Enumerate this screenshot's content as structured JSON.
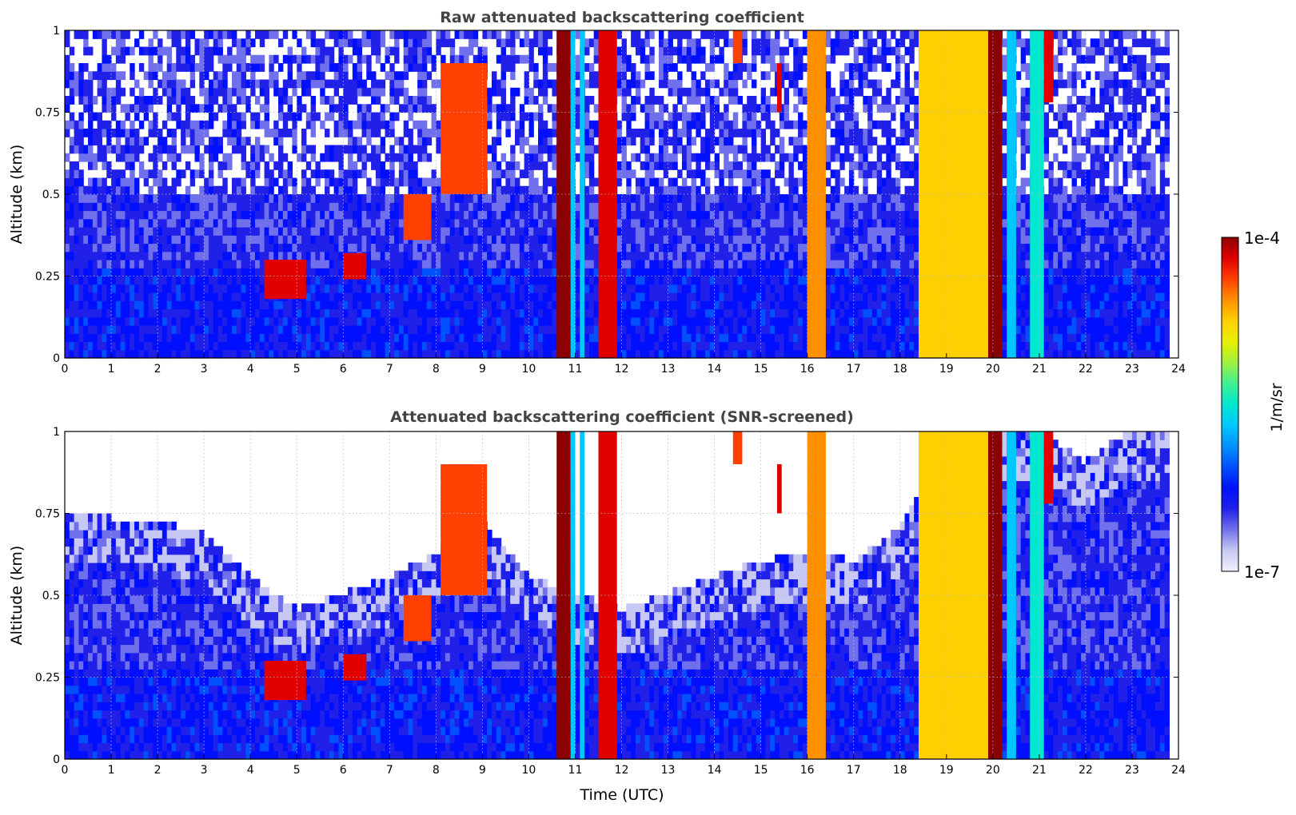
{
  "chart_data": [
    {
      "type": "heatmap",
      "title": "Raw attenuated backscattering coefficient",
      "xlabel": "",
      "ylabel": "Altitude (km)",
      "xlim": [
        0,
        24
      ],
      "ylim": [
        0,
        1
      ],
      "x_ticks": [
        "0",
        "1",
        "2",
        "3",
        "4",
        "5",
        "6",
        "7",
        "8",
        "9",
        "10",
        "11",
        "12",
        "13",
        "14",
        "15",
        "16",
        "17",
        "18",
        "19",
        "20",
        "21",
        "22",
        "23",
        "24"
      ],
      "y_ticks": [
        "0",
        "0.25",
        "0.5",
        "0.75",
        "1"
      ],
      "data_end_hour": 23.8,
      "background_level": 0.2,
      "noise_floor_altitude_km": 0.5,
      "features": [
        {
          "x_start": 10.6,
          "x_end": 10.9,
          "y_bottom": 0,
          "y_top": 1,
          "level": 0.95
        },
        {
          "x_start": 10.9,
          "x_end": 11.0,
          "y_bottom": 0,
          "y_top": 1,
          "level": 0.45
        },
        {
          "x_start": 11.1,
          "x_end": 11.2,
          "y_bottom": 0,
          "y_top": 1,
          "level": 0.45
        },
        {
          "x_start": 11.5,
          "x_end": 11.9,
          "y_bottom": 0,
          "y_top": 1,
          "level": 0.9
        },
        {
          "x_start": 16.0,
          "x_end": 16.4,
          "y_bottom": 0,
          "y_top": 1,
          "level": 0.8
        },
        {
          "x_start": 18.4,
          "x_end": 19.9,
          "y_bottom": 0,
          "y_top": 1,
          "level": 0.72
        },
        {
          "x_start": 19.9,
          "x_end": 20.2,
          "y_bottom": 0,
          "y_top": 1,
          "level": 0.95
        },
        {
          "x_start": 20.3,
          "x_end": 20.5,
          "y_bottom": 0,
          "y_top": 1,
          "level": 0.45
        },
        {
          "x_start": 20.8,
          "x_end": 21.1,
          "y_bottom": 0,
          "y_top": 1,
          "level": 0.5
        },
        {
          "x_start": 4.3,
          "x_end": 5.2,
          "y_bottom": 0.18,
          "y_top": 0.3,
          "level": 0.9
        },
        {
          "x_start": 6.0,
          "x_end": 6.5,
          "y_bottom": 0.24,
          "y_top": 0.32,
          "level": 0.9
        },
        {
          "x_start": 7.3,
          "x_end": 7.9,
          "y_bottom": 0.36,
          "y_top": 0.5,
          "level": 0.88
        },
        {
          "x_start": 8.1,
          "x_end": 9.1,
          "y_bottom": 0.5,
          "y_top": 0.9,
          "level": 0.85
        },
        {
          "x_start": 14.4,
          "x_end": 14.6,
          "y_bottom": 0.9,
          "y_top": 1,
          "level": 0.85
        },
        {
          "x_start": 15.35,
          "x_end": 15.45,
          "y_bottom": 0.75,
          "y_top": 0.9,
          "level": 0.9
        },
        {
          "x_start": 21.1,
          "x_end": 21.3,
          "y_bottom": 0.78,
          "y_top": 1,
          "level": 0.9
        }
      ]
    },
    {
      "type": "heatmap",
      "title": "Attenuated backscattering coefficient (SNR-screened)",
      "xlabel": "Time (UTC)",
      "ylabel": "Altitude (km)",
      "xlim": [
        0,
        24
      ],
      "ylim": [
        0,
        1
      ],
      "x_ticks": [
        "0",
        "1",
        "2",
        "3",
        "4",
        "5",
        "6",
        "7",
        "8",
        "9",
        "10",
        "11",
        "12",
        "13",
        "14",
        "15",
        "16",
        "17",
        "18",
        "19",
        "20",
        "21",
        "22",
        "23",
        "24"
      ],
      "y_ticks": [
        "0",
        "0.25",
        "0.5",
        "0.75",
        "1"
      ],
      "data_end_hour": 23.8,
      "background_level": 0.2,
      "valid_top_profile": [
        {
          "x": 0,
          "y": 0.75
        },
        {
          "x": 1,
          "y": 0.73
        },
        {
          "x": 2,
          "y": 0.72
        },
        {
          "x": 3,
          "y": 0.68
        },
        {
          "x": 4,
          "y": 0.55
        },
        {
          "x": 5,
          "y": 0.45
        },
        {
          "x": 6,
          "y": 0.5
        },
        {
          "x": 7,
          "y": 0.55
        },
        {
          "x": 8,
          "y": 0.62
        },
        {
          "x": 9,
          "y": 0.72
        },
        {
          "x": 10,
          "y": 0.55
        },
        {
          "x": 12,
          "y": 0.45
        },
        {
          "x": 13,
          "y": 0.5
        },
        {
          "x": 14,
          "y": 0.55
        },
        {
          "x": 15,
          "y": 0.6
        },
        {
          "x": 16,
          "y": 0.62
        },
        {
          "x": 17,
          "y": 0.6
        },
        {
          "x": 18,
          "y": 0.7
        },
        {
          "x": 19,
          "y": 1.0
        },
        {
          "x": 21,
          "y": 1.0
        },
        {
          "x": 22,
          "y": 0.9
        },
        {
          "x": 23,
          "y": 1.0
        },
        {
          "x": 23.8,
          "y": 1.0
        }
      ],
      "features": [
        {
          "x_start": 10.6,
          "x_end": 10.9,
          "y_bottom": 0,
          "y_top": 1,
          "level": 0.95
        },
        {
          "x_start": 10.9,
          "x_end": 11.0,
          "y_bottom": 0,
          "y_top": 1,
          "level": 0.45
        },
        {
          "x_start": 11.1,
          "x_end": 11.2,
          "y_bottom": 0,
          "y_top": 1,
          "level": 0.45
        },
        {
          "x_start": 11.5,
          "x_end": 11.9,
          "y_bottom": 0,
          "y_top": 1,
          "level": 0.9
        },
        {
          "x_start": 16.0,
          "x_end": 16.4,
          "y_bottom": 0,
          "y_top": 1,
          "level": 0.8
        },
        {
          "x_start": 18.4,
          "x_end": 19.9,
          "y_bottom": 0,
          "y_top": 1,
          "level": 0.72
        },
        {
          "x_start": 19.9,
          "x_end": 20.2,
          "y_bottom": 0,
          "y_top": 1,
          "level": 0.95
        },
        {
          "x_start": 20.3,
          "x_end": 20.5,
          "y_bottom": 0,
          "y_top": 1,
          "level": 0.45
        },
        {
          "x_start": 20.8,
          "x_end": 21.1,
          "y_bottom": 0,
          "y_top": 1,
          "level": 0.5
        },
        {
          "x_start": 4.3,
          "x_end": 5.2,
          "y_bottom": 0.18,
          "y_top": 0.3,
          "level": 0.9
        },
        {
          "x_start": 6.0,
          "x_end": 6.5,
          "y_bottom": 0.24,
          "y_top": 0.32,
          "level": 0.9
        },
        {
          "x_start": 7.3,
          "x_end": 7.9,
          "y_bottom": 0.36,
          "y_top": 0.5,
          "level": 0.88
        },
        {
          "x_start": 8.1,
          "x_end": 9.1,
          "y_bottom": 0.5,
          "y_top": 0.9,
          "level": 0.85
        },
        {
          "x_start": 14.4,
          "x_end": 14.6,
          "y_bottom": 0.9,
          "y_top": 1,
          "level": 0.85
        },
        {
          "x_start": 15.35,
          "x_end": 15.45,
          "y_bottom": 0.75,
          "y_top": 0.9,
          "level": 0.9
        },
        {
          "x_start": 21.1,
          "x_end": 21.3,
          "y_bottom": 0.78,
          "y_top": 1,
          "level": 0.9
        }
      ]
    }
  ],
  "colorbar": {
    "label": "1/m/sr",
    "max_label": "1e-4",
    "min_label": "1e-7",
    "colors": [
      "#f0f0fc",
      "#c8c8f4",
      "#7070ec",
      "#2020e8",
      "#0010ff",
      "#0050ff",
      "#0090ff",
      "#00c8ff",
      "#00e8d0",
      "#40f090",
      "#a0f040",
      "#e8f000",
      "#ffd000",
      "#ff9000",
      "#ff4000",
      "#e00000",
      "#8b0000"
    ]
  }
}
